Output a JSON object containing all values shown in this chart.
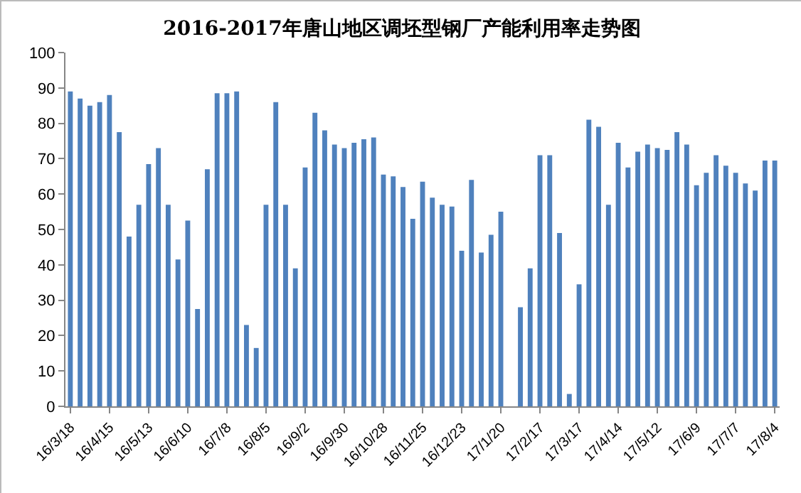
{
  "chart_data": {
    "type": "bar",
    "title": "2016-2017年唐山地区调坯型钢厂产能利用率走势图",
    "categories": [
      "16/3/18",
      null,
      null,
      null,
      "16/4/15",
      null,
      null,
      null,
      "16/5/13",
      null,
      null,
      null,
      "16/6/10",
      null,
      null,
      null,
      "16/7/8",
      null,
      null,
      null,
      "16/8/5",
      null,
      null,
      null,
      "16/9/2",
      null,
      null,
      null,
      "16/9/30",
      null,
      null,
      null,
      "16/10/28",
      null,
      null,
      null,
      "16/11/25",
      null,
      null,
      null,
      "16/12/23",
      null,
      null,
      null,
      "17/1/20",
      null,
      null,
      null,
      "17/2/17",
      null,
      null,
      null,
      "17/3/17",
      null,
      null,
      null,
      "17/4/14",
      null,
      null,
      null,
      "17/5/12",
      null,
      null,
      null,
      "17/6/9",
      null,
      null,
      null,
      "17/7/7",
      null,
      null,
      null,
      "17/8/4"
    ],
    "values": [
      89,
      87,
      85,
      86,
      88,
      77.5,
      48,
      57,
      68.5,
      73,
      57,
      41.5,
      52.5,
      27.5,
      67,
      88.5,
      88.5,
      89,
      23,
      16.5,
      57,
      86,
      57,
      39,
      67.5,
      83,
      78,
      74,
      73,
      74.5,
      75.5,
      76,
      65.5,
      65,
      62,
      53,
      63.5,
      59,
      57,
      56.5,
      44,
      64,
      43.5,
      48.5,
      55,
      null,
      28,
      39,
      71,
      71,
      49,
      3.5,
      34.5,
      81,
      79,
      57,
      74.5,
      67.5,
      72,
      74,
      73,
      72.5,
      77.5,
      74,
      62.5,
      66,
      71,
      68,
      66,
      63,
      61,
      69.5,
      69.5
    ],
    "color": "#4f81bd",
    "ylim": [
      0,
      100
    ],
    "yticks": [
      0,
      10,
      20,
      30,
      40,
      50,
      60,
      70,
      80,
      90,
      100
    ],
    "grid": false,
    "legend": false
  }
}
